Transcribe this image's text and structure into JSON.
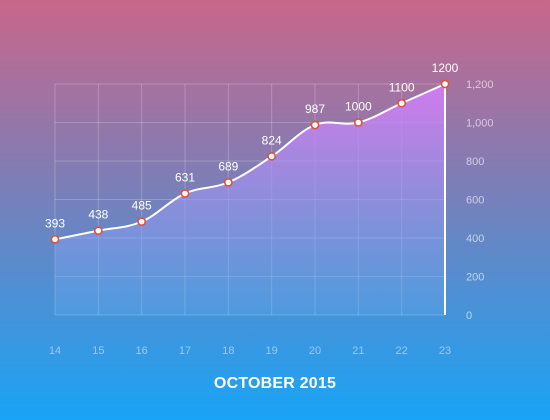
{
  "theme": {
    "gradient_top": "#c9668a",
    "gradient_mid": "#7a7fb8",
    "gradient_bottom": "#18a4f6",
    "area_top": "#d37bf2",
    "area_bottom": "#69b0f0",
    "line_color": "#ffffff",
    "point_fill": "#ffffff",
    "point_stroke": "#e0503a",
    "grid_color": "rgba(255,255,255,0.22)",
    "axis_text_color": "rgba(255,255,255,0.62)",
    "x_tick_color": "rgba(255,255,255,0.48)"
  },
  "chart_data": {
    "type": "area",
    "title": "OCTOBER 2015",
    "xlabel": "",
    "ylabel": "",
    "x": [
      "14",
      "15",
      "16",
      "17",
      "18",
      "19",
      "20",
      "21",
      "22",
      "23"
    ],
    "series": [
      {
        "values": [
          393,
          438,
          485,
          631,
          689,
          824,
          987,
          1000,
          1100,
          1200
        ],
        "data_labels": [
          "393",
          "438",
          "485",
          "631",
          "689",
          "824",
          "987",
          "1000",
          "1100",
          "1200"
        ]
      }
    ],
    "y_ticks": [
      0,
      200,
      400,
      600,
      800,
      1000,
      1200
    ],
    "y_tick_labels": [
      "0",
      "200",
      "400",
      "600",
      "800",
      "1,000",
      "1,200"
    ],
    "ylim": [
      0,
      1200
    ],
    "y_axis_side": "right",
    "grid": true,
    "legend": "none",
    "smooth": true
  }
}
